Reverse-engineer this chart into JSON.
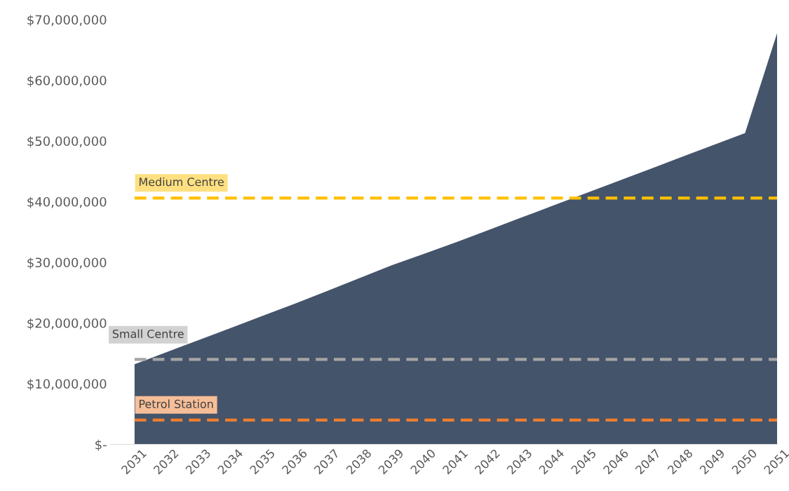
{
  "chart_data": {
    "type": "area",
    "categories": [
      "2031",
      "2032",
      "2033",
      "2034",
      "2035",
      "2036",
      "2037",
      "2038",
      "2039",
      "2040",
      "2041",
      "2042",
      "2043",
      "2044",
      "2045",
      "2046",
      "2047",
      "2048",
      "2049",
      "2050",
      "2051"
    ],
    "series": [
      {
        "color": "#44546a",
        "values": [
          13200000,
          15200000,
          17200000,
          19200000,
          21200000,
          23200000,
          25300000,
          27400000,
          29500000,
          31400000,
          33300000,
          35300000,
          37300000,
          39300000,
          41300000,
          43300000,
          45300000,
          47300000,
          49300000,
          51300000,
          67800000
        ]
      }
    ],
    "ylim": [
      0,
      70000000
    ],
    "yticks": [
      {
        "value": 0,
        "label": "$-"
      },
      {
        "value": 10000000,
        "label": "$10,000,000"
      },
      {
        "value": 20000000,
        "label": "$20,000,000"
      },
      {
        "value": 30000000,
        "label": "$30,000,000"
      },
      {
        "value": 40000000,
        "label": "$40,000,000"
      },
      {
        "value": 50000000,
        "label": "$50,000,000"
      },
      {
        "value": 60000000,
        "label": "$60,000,000"
      },
      {
        "value": 70000000,
        "label": "$70,000,000"
      }
    ],
    "ref_lines": [
      {
        "axis": "y",
        "value": 40600000,
        "label": "Medium Centre",
        "color": "#ffc000",
        "line_style": "dashed"
      },
      {
        "axis": "y",
        "value": 14000000,
        "label": "Small Centre",
        "color": "#a5a5a5",
        "line_style": "dashed"
      },
      {
        "axis": "y",
        "value": 4000000,
        "label": "Petrol Station",
        "color": "#ed7d31",
        "line_style": "dashed"
      }
    ],
    "grid": false,
    "legend": false
  }
}
